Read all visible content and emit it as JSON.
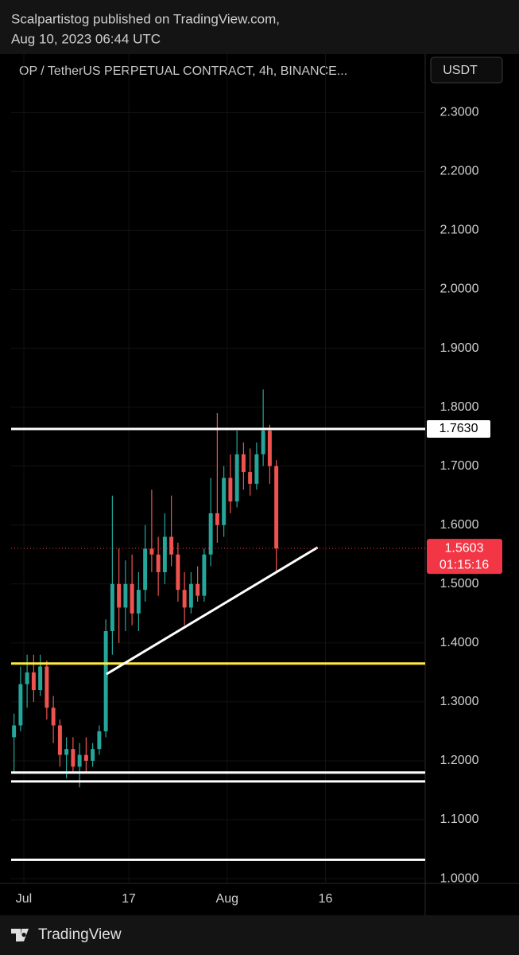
{
  "header": {
    "line1": "Scalpartistog published on TradingView.com,",
    "line2": "Aug 10, 2023 06:44 UTC"
  },
  "chart_data": {
    "type": "candlestick",
    "title": "OP / TetherUS PERPETUAL CONTRACT, 4h, BINANCE...",
    "currency": "USDT",
    "x": [
      -1.5,
      -0.5,
      0.5,
      1.5,
      2.5,
      3.5,
      4.5,
      5.5,
      6.5,
      7.5,
      8.5,
      9.5,
      10.5,
      11.5,
      12.5,
      13.5,
      14.5,
      15.5,
      16.5,
      17.5,
      18.5,
      19.5,
      20.5,
      21.5,
      22.5,
      23.5,
      24.5,
      25.5,
      26.5,
      27.5,
      28.5,
      29.5,
      30.5,
      31.5,
      32.5,
      33.5,
      34.5,
      35.5,
      36.5,
      37.5,
      38.5
    ],
    "open": [
      1.24,
      1.26,
      1.33,
      1.35,
      1.32,
      1.36,
      1.29,
      1.26,
      1.21,
      1.22,
      1.19,
      1.21,
      1.2,
      1.22,
      1.25,
      1.42,
      1.5,
      1.46,
      1.5,
      1.45,
      1.49,
      1.56,
      1.55,
      1.52,
      1.58,
      1.55,
      1.49,
      1.46,
      1.5,
      1.48,
      1.55,
      1.62,
      1.6,
      1.68,
      1.64,
      1.72,
      1.69,
      1.67,
      1.72,
      1.76,
      1.7
    ],
    "high": [
      1.28,
      1.36,
      1.38,
      1.38,
      1.38,
      1.37,
      1.31,
      1.27,
      1.24,
      1.24,
      1.23,
      1.24,
      1.23,
      1.26,
      1.44,
      1.65,
      1.56,
      1.54,
      1.55,
      1.52,
      1.6,
      1.66,
      1.58,
      1.62,
      1.65,
      1.57,
      1.52,
      1.52,
      1.53,
      1.56,
      1.68,
      1.79,
      1.7,
      1.72,
      1.76,
      1.74,
      1.73,
      1.74,
      1.83,
      1.77,
      1.71
    ],
    "low": [
      1.18,
      1.25,
      1.29,
      1.3,
      1.31,
      1.27,
      1.23,
      1.19,
      1.17,
      1.18,
      1.155,
      1.18,
      1.19,
      1.21,
      1.24,
      1.38,
      1.4,
      1.42,
      1.43,
      1.42,
      1.47,
      1.52,
      1.48,
      1.5,
      1.53,
      1.47,
      1.43,
      1.45,
      1.47,
      1.47,
      1.53,
      1.57,
      1.58,
      1.62,
      1.63,
      1.66,
      1.65,
      1.66,
      1.7,
      1.67,
      1.52
    ],
    "close": [
      1.26,
      1.33,
      1.35,
      1.32,
      1.36,
      1.29,
      1.26,
      1.21,
      1.22,
      1.19,
      1.21,
      1.2,
      1.22,
      1.25,
      1.42,
      1.5,
      1.46,
      1.5,
      1.45,
      1.49,
      1.56,
      1.55,
      1.52,
      1.58,
      1.55,
      1.49,
      1.46,
      1.5,
      1.48,
      1.55,
      1.62,
      1.6,
      1.68,
      1.64,
      1.72,
      1.69,
      1.67,
      1.72,
      1.76,
      1.7,
      1.5603
    ],
    "up_color": "#26a69a",
    "down_color": "#ef5350",
    "xlim": [
      -1.94,
      61.21
    ],
    "xticks": [
      {
        "value": 0,
        "label": "Jul"
      },
      {
        "value": 16,
        "label": "17"
      },
      {
        "value": 31,
        "label": "Aug"
      },
      {
        "value": 46,
        "label": "16"
      }
    ],
    "ylim": [
      0.992,
      2.399
    ],
    "yticks": [
      {
        "value": 1.0,
        "label": "1.0000"
      },
      {
        "value": 1.1,
        "label": "1.1000"
      },
      {
        "value": 1.2,
        "label": "1.2000"
      },
      {
        "value": 1.3,
        "label": "1.3000"
      },
      {
        "value": 1.4,
        "label": "1.4000"
      },
      {
        "value": 1.5,
        "label": "1.5000"
      },
      {
        "value": 1.6,
        "label": "1.6000"
      },
      {
        "value": 1.7,
        "label": "1.7000"
      },
      {
        "value": 1.8,
        "label": "1.8000"
      },
      {
        "value": 1.9,
        "label": "1.9000"
      },
      {
        "value": 2.0,
        "label": "2.0000"
      },
      {
        "value": 2.1,
        "label": "2.1000"
      },
      {
        "value": 2.2,
        "label": "2.2000"
      },
      {
        "value": 2.3,
        "label": "2.3000"
      }
    ],
    "grid": true,
    "horizontal_lines": [
      {
        "value": 1.763,
        "color": "#ffffff",
        "label": "1.7630"
      },
      {
        "value": 1.365,
        "color": "#ffeb3b"
      },
      {
        "value": 1.18,
        "color": "#ffffff"
      },
      {
        "value": 1.165,
        "color": "#ffffff"
      },
      {
        "value": 1.032,
        "color": "#ffffff"
      }
    ],
    "trendline": {
      "x": [
        12.6,
        44.8
      ],
      "y": [
        1.347,
        1.562
      ],
      "color": "#ffffff"
    },
    "last_price": {
      "value": 1.5603,
      "countdown": "01:15:16",
      "color": "#f23645"
    }
  },
  "footer": {
    "brand": "TradingView"
  }
}
